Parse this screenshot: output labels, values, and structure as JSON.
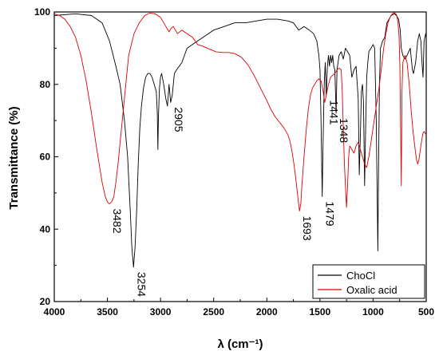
{
  "chart_data": {
    "type": "line",
    "xlabel": "λ (cm⁻¹)",
    "ylabel": "Transmittance  (%)",
    "xlim": [
      4000,
      500
    ],
    "ylim": [
      20,
      100
    ],
    "x_ticks": [
      4000,
      3500,
      3000,
      2500,
      2000,
      1500,
      1000,
      500
    ],
    "y_ticks": [
      20,
      40,
      60,
      80,
      100
    ],
    "grid": false,
    "legend_position": "bottom-right",
    "series": [
      {
        "name": "ChoCl",
        "color": "#000000",
        "points": [
          [
            4000,
            99
          ],
          [
            3800,
            99.5
          ],
          [
            3650,
            99
          ],
          [
            3550,
            97
          ],
          [
            3480,
            92
          ],
          [
            3420,
            85
          ],
          [
            3380,
            80
          ],
          [
            3340,
            70
          ],
          [
            3310,
            60
          ],
          [
            3285,
            45
          ],
          [
            3270,
            35
          ],
          [
            3254,
            29.5
          ],
          [
            3240,
            35
          ],
          [
            3225,
            45
          ],
          [
            3210,
            58
          ],
          [
            3195,
            68
          ],
          [
            3180,
            74
          ],
          [
            3160,
            79
          ],
          [
            3140,
            82
          ],
          [
            3120,
            83
          ],
          [
            3100,
            83
          ],
          [
            3080,
            82
          ],
          [
            3060,
            80
          ],
          [
            3040,
            78
          ],
          [
            3030,
            72
          ],
          [
            3025,
            62
          ],
          [
            3020,
            71
          ],
          [
            3010,
            79
          ],
          [
            3000,
            82
          ],
          [
            2990,
            83
          ],
          [
            2970,
            80
          ],
          [
            2950,
            76
          ],
          [
            2935,
            74
          ],
          [
            2920,
            80
          ],
          [
            2905,
            75
          ],
          [
            2890,
            77
          ],
          [
            2870,
            83
          ],
          [
            2850,
            84
          ],
          [
            2800,
            86
          ],
          [
            2750,
            90
          ],
          [
            2700,
            91
          ],
          [
            2600,
            93
          ],
          [
            2500,
            95
          ],
          [
            2400,
            96
          ],
          [
            2300,
            97
          ],
          [
            2200,
            97
          ],
          [
            2100,
            97.5
          ],
          [
            2000,
            98
          ],
          [
            1900,
            98
          ],
          [
            1800,
            97.5
          ],
          [
            1750,
            97
          ],
          [
            1700,
            95
          ],
          [
            1650,
            96
          ],
          [
            1600,
            95
          ],
          [
            1560,
            94
          ],
          [
            1530,
            92
          ],
          [
            1510,
            88
          ],
          [
            1500,
            84
          ],
          [
            1490,
            70
          ],
          [
            1485,
            60
          ],
          [
            1479,
            49
          ],
          [
            1472,
            62
          ],
          [
            1460,
            80
          ],
          [
            1450,
            86
          ],
          [
            1441,
            77
          ],
          [
            1430,
            85
          ],
          [
            1420,
            88
          ],
          [
            1410,
            85
          ],
          [
            1400,
            88
          ],
          [
            1390,
            86
          ],
          [
            1380,
            88
          ],
          [
            1370,
            85
          ],
          [
            1360,
            84
          ],
          [
            1348,
            72
          ],
          [
            1340,
            84
          ],
          [
            1320,
            88
          ],
          [
            1300,
            89
          ],
          [
            1280,
            87
          ],
          [
            1260,
            90
          ],
          [
            1240,
            89
          ],
          [
            1220,
            88
          ],
          [
            1200,
            82
          ],
          [
            1180,
            84
          ],
          [
            1160,
            85
          ],
          [
            1140,
            76
          ],
          [
            1130,
            55
          ],
          [
            1120,
            66
          ],
          [
            1110,
            78
          ],
          [
            1100,
            80
          ],
          [
            1090,
            75
          ],
          [
            1080,
            52
          ],
          [
            1070,
            68
          ],
          [
            1060,
            82
          ],
          [
            1050,
            86
          ],
          [
            1040,
            89
          ],
          [
            1020,
            90
          ],
          [
            1000,
            91
          ],
          [
            985,
            90
          ],
          [
            970,
            70
          ],
          [
            962,
            50
          ],
          [
            955,
            34
          ],
          [
            948,
            60
          ],
          [
            940,
            80
          ],
          [
            930,
            90
          ],
          [
            910,
            92
          ],
          [
            890,
            93
          ],
          [
            870,
            97
          ],
          [
            850,
            98
          ],
          [
            830,
            99
          ],
          [
            800,
            99.5
          ],
          [
            780,
            99
          ],
          [
            760,
            98
          ],
          [
            745,
            95
          ],
          [
            735,
            90
          ],
          [
            720,
            88
          ],
          [
            700,
            87
          ],
          [
            680,
            88
          ],
          [
            650,
            90
          ],
          [
            630,
            84
          ],
          [
            620,
            83
          ],
          [
            600,
            86
          ],
          [
            580,
            92
          ],
          [
            565,
            94
          ],
          [
            550,
            92
          ],
          [
            540,
            86
          ],
          [
            530,
            82
          ],
          [
            520,
            92
          ],
          [
            505,
            94
          ],
          [
            500,
            93
          ]
        ]
      },
      {
        "name": "Oxalic acid",
        "color": "#e00000",
        "points": [
          [
            4000,
            99.5
          ],
          [
            3950,
            99
          ],
          [
            3900,
            98
          ],
          [
            3850,
            96
          ],
          [
            3800,
            93
          ],
          [
            3750,
            88
          ],
          [
            3700,
            81
          ],
          [
            3650,
            72
          ],
          [
            3600,
            62
          ],
          [
            3550,
            53
          ],
          [
            3520,
            49
          ],
          [
            3500,
            47.5
          ],
          [
            3482,
            47
          ],
          [
            3460,
            47.5
          ],
          [
            3440,
            49
          ],
          [
            3420,
            53
          ],
          [
            3400,
            58
          ],
          [
            3380,
            64
          ],
          [
            3350,
            73
          ],
          [
            3320,
            82
          ],
          [
            3300,
            88
          ],
          [
            3250,
            94
          ],
          [
            3200,
            97
          ],
          [
            3150,
            99
          ],
          [
            3100,
            99.7
          ],
          [
            3050,
            99.5
          ],
          [
            3000,
            98.5
          ],
          [
            2950,
            96
          ],
          [
            2920,
            94.5
          ],
          [
            2900,
            95.5
          ],
          [
            2880,
            96
          ],
          [
            2860,
            95
          ],
          [
            2840,
            94
          ],
          [
            2800,
            95
          ],
          [
            2750,
            94
          ],
          [
            2700,
            93
          ],
          [
            2650,
            91
          ],
          [
            2600,
            90.5
          ],
          [
            2560,
            90
          ],
          [
            2520,
            89.5
          ],
          [
            2480,
            89
          ],
          [
            2420,
            88.8
          ],
          [
            2360,
            88.8
          ],
          [
            2300,
            88.5
          ],
          [
            2240,
            87.5
          ],
          [
            2180,
            85.5
          ],
          [
            2120,
            82.5
          ],
          [
            2060,
            79
          ],
          [
            2000,
            75.5
          ],
          [
            1960,
            73
          ],
          [
            1920,
            71
          ],
          [
            1880,
            69.5
          ],
          [
            1840,
            68
          ],
          [
            1800,
            66
          ],
          [
            1780,
            64
          ],
          [
            1760,
            61
          ],
          [
            1740,
            57
          ],
          [
            1720,
            52
          ],
          [
            1705,
            48
          ],
          [
            1693,
            45
          ],
          [
            1680,
            47
          ],
          [
            1670,
            52
          ],
          [
            1650,
            60
          ],
          [
            1630,
            67
          ],
          [
            1610,
            73
          ],
          [
            1590,
            77
          ],
          [
            1570,
            79
          ],
          [
            1550,
            80
          ],
          [
            1530,
            81
          ],
          [
            1510,
            81.5
          ],
          [
            1490,
            81
          ],
          [
            1470,
            78
          ],
          [
            1455,
            75
          ],
          [
            1440,
            77
          ],
          [
            1420,
            80
          ],
          [
            1400,
            82
          ],
          [
            1380,
            82.5
          ],
          [
            1360,
            83
          ],
          [
            1340,
            84
          ],
          [
            1320,
            84.5
          ],
          [
            1300,
            84
          ],
          [
            1290,
            78
          ],
          [
            1280,
            68
          ],
          [
            1270,
            58
          ],
          [
            1260,
            52
          ],
          [
            1250,
            46
          ],
          [
            1240,
            52
          ],
          [
            1230,
            60
          ],
          [
            1220,
            63
          ],
          [
            1200,
            62
          ],
          [
            1180,
            61
          ],
          [
            1160,
            63
          ],
          [
            1140,
            64
          ],
          [
            1120,
            62
          ],
          [
            1100,
            60
          ],
          [
            1080,
            58
          ],
          [
            1060,
            57
          ],
          [
            1040,
            60
          ],
          [
            1020,
            64
          ],
          [
            1000,
            68
          ],
          [
            980,
            72
          ],
          [
            960,
            76
          ],
          [
            940,
            80
          ],
          [
            920,
            85
          ],
          [
            900,
            90
          ],
          [
            880,
            94
          ],
          [
            860,
            97
          ],
          [
            840,
            98.5
          ],
          [
            820,
            99.5
          ],
          [
            800,
            99.8
          ],
          [
            780,
            99.3
          ],
          [
            765,
            97
          ],
          [
            755,
            93
          ],
          [
            748,
            85
          ],
          [
            742,
            70
          ],
          [
            738,
            60
          ],
          [
            735,
            52
          ],
          [
            732,
            62
          ],
          [
            728,
            78
          ],
          [
            720,
            86
          ],
          [
            700,
            88
          ],
          [
            680,
            86
          ],
          [
            660,
            80
          ],
          [
            640,
            72
          ],
          [
            620,
            66
          ],
          [
            600,
            61
          ],
          [
            590,
            59
          ],
          [
            580,
            58
          ],
          [
            570,
            59
          ],
          [
            560,
            61
          ],
          [
            550,
            63
          ],
          [
            540,
            65
          ],
          [
            530,
            66.5
          ],
          [
            520,
            67
          ],
          [
            510,
            66.5
          ],
          [
            500,
            66
          ]
        ]
      }
    ],
    "annotations": [
      {
        "text": "3482",
        "x": 3482,
        "y": 47,
        "rotation": 90
      },
      {
        "text": "3254",
        "x": 3254,
        "y": 29.5,
        "rotation": 90
      },
      {
        "text": "2905",
        "x": 2905,
        "y": 75,
        "rotation": 90
      },
      {
        "text": "1693",
        "x": 1693,
        "y": 45,
        "rotation": 90
      },
      {
        "text": "1479",
        "x": 1479,
        "y": 49,
        "rotation": 90
      },
      {
        "text": "1441",
        "x": 1441,
        "y": 77,
        "rotation": 90
      },
      {
        "text": "1348",
        "x": 1348,
        "y": 72,
        "rotation": 90
      }
    ]
  }
}
